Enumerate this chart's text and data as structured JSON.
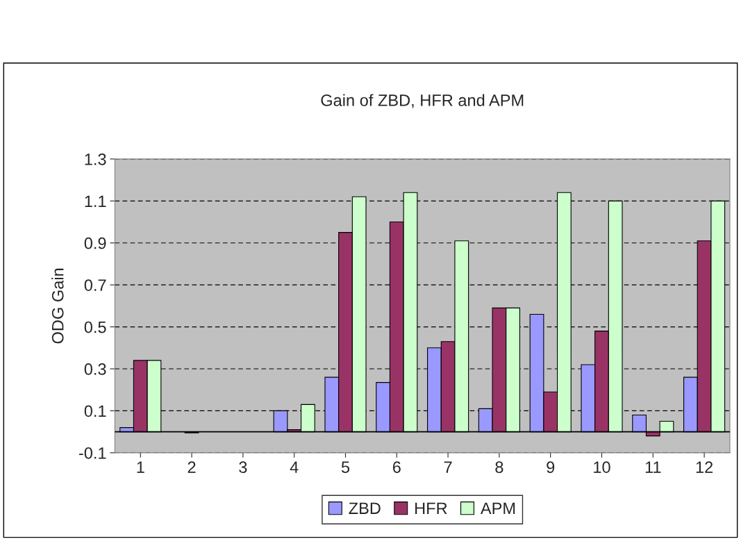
{
  "chart_data": {
    "type": "bar",
    "title": "Gain of ZBD, HFR and APM",
    "ylabel": "ODG Gain",
    "categories": [
      "1",
      "2",
      "3",
      "4",
      "5",
      "6",
      "7",
      "8",
      "9",
      "10",
      "11",
      "12"
    ],
    "series": [
      {
        "name": "ZBD",
        "color": "#9999ff",
        "values": [
          0.02,
          null,
          null,
          0.1,
          0.26,
          0.235,
          0.4,
          0.11,
          0.56,
          0.32,
          0.08,
          0.26
        ]
      },
      {
        "name": "HFR",
        "color": "#993366",
        "values": [
          0.34,
          -0.005,
          null,
          0.01,
          0.95,
          1.0,
          0.43,
          0.59,
          0.19,
          0.48,
          -0.02,
          0.91
        ]
      },
      {
        "name": "APM",
        "color": "#ccffcc",
        "values": [
          0.34,
          null,
          null,
          0.13,
          1.12,
          1.14,
          0.91,
          0.59,
          1.14,
          1.1,
          0.05,
          1.1
        ]
      }
    ],
    "ylim": [
      -0.1,
      1.3
    ],
    "yticks": [
      -0.1,
      0.1,
      0.3,
      0.5,
      0.7,
      0.9,
      1.1,
      1.3
    ],
    "ref_lines": [
      {
        "axis": "y",
        "value": 0,
        "color": "#000000"
      }
    ],
    "grid": "y",
    "legend": "bottom"
  }
}
